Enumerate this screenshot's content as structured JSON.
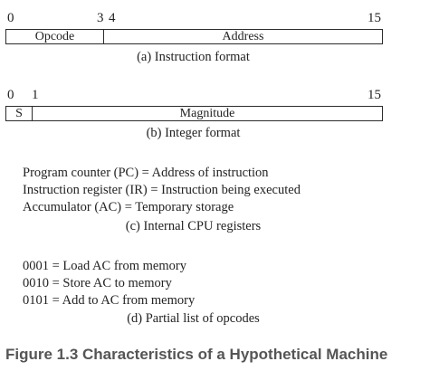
{
  "instruction_format": {
    "bit_labels": [
      "0",
      "3",
      "4",
      "15"
    ],
    "fields": [
      "Opcode",
      "Address"
    ],
    "caption": "(a) Instruction format"
  },
  "integer_format": {
    "bit_labels": [
      "0",
      "1",
      "15"
    ],
    "fields": [
      "S",
      "Magnitude"
    ],
    "caption": "(b) Integer format"
  },
  "cpu_registers": {
    "lines": [
      "Program counter (PC) = Address of instruction",
      "Instruction register (IR) = Instruction being executed",
      "Accumulator (AC) = Temporary storage"
    ],
    "caption": "(c) Internal CPU registers"
  },
  "opcodes": {
    "lines": [
      "0001 = Load AC from memory",
      "0010 = Store AC to memory",
      "0101 = Add to AC from memory"
    ],
    "caption": "(d) Partial list of opcodes"
  },
  "figure_title": "Figure 1.3 Characteristics of a Hypothetical Machine"
}
